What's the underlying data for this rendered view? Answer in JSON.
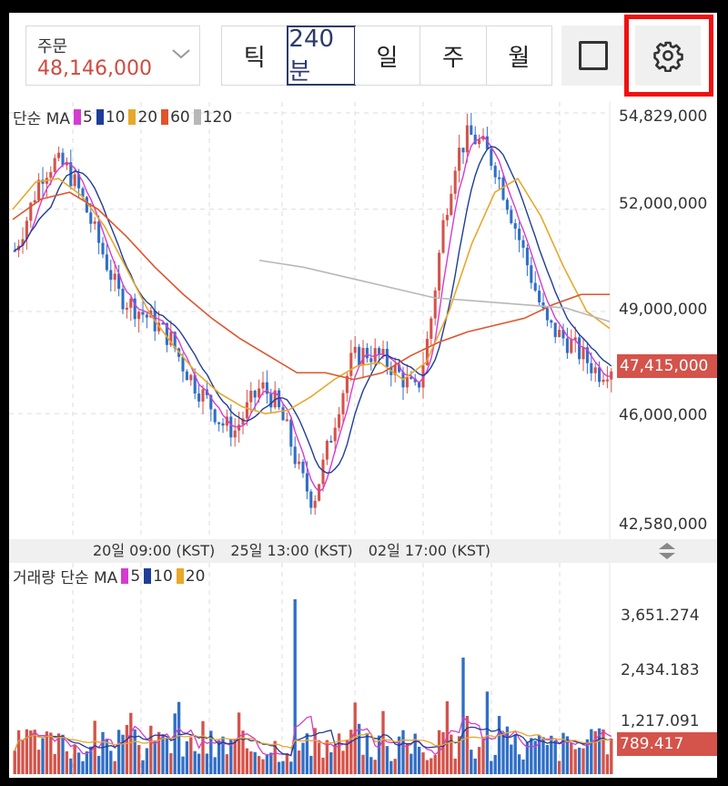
{
  "toolbar": {
    "order_label": "주문",
    "order_value": "48,146,000",
    "tabs": [
      {
        "label": "틱",
        "active": false
      },
      {
        "label": "240분",
        "active": true
      },
      {
        "label": "일",
        "active": false
      },
      {
        "label": "주",
        "active": false
      },
      {
        "label": "월",
        "active": false
      }
    ],
    "square_icon": "square-outline-icon",
    "settings_icon": "gear-icon",
    "highlight_color": "#f01010"
  },
  "price_legend": {
    "title": "단순 MA",
    "items": [
      {
        "label": "5",
        "color": "#d63bd0"
      },
      {
        "label": "10",
        "color": "#1f3d99"
      },
      {
        "label": "20",
        "color": "#e8a82a"
      },
      {
        "label": "60",
        "color": "#e0542c"
      },
      {
        "label": "120",
        "color": "#b8b8b8"
      }
    ]
  },
  "price_axis": {
    "labels": [
      "54,829,000",
      "52,000,000",
      "49,000,000",
      "47,415,000",
      "46,000,000",
      "42,580,000"
    ],
    "current_price": "47,415,000"
  },
  "time_axis": {
    "labels": [
      "20일 09:00 (KST)",
      "25일 13:00 (KST)",
      "02일 17:00 (KST)"
    ]
  },
  "volume_legend": {
    "title": "거래량 단순 MA",
    "items": [
      {
        "label": "5",
        "color": "#d63bd0"
      },
      {
        "label": "10",
        "color": "#1f3d99"
      },
      {
        "label": "20",
        "color": "#e8a82a"
      }
    ]
  },
  "volume_axis": {
    "labels": [
      "3,651.274",
      "2,434.183",
      "1,217.091"
    ],
    "current_volume": "789.417"
  },
  "colors": {
    "up": "#d4534a",
    "down": "#2f6fc6"
  },
  "chart_data": {
    "type": "candlestick",
    "price_range": [
      42580000,
      54829000
    ],
    "volume_range": [
      0,
      4200
    ],
    "price_path": [
      50800000,
      51800000,
      53000000,
      53400000,
      53200000,
      52500000,
      51500000,
      50500000,
      49500000,
      49200000,
      48900000,
      48600000,
      48200000,
      47400000,
      46800000,
      46300000,
      45700000,
      45500000,
      46200000,
      46800000,
      46400000,
      45500000,
      44200000,
      43400000,
      44800000,
      46300000,
      47600000,
      47800000,
      47700000,
      47400000,
      47000000,
      46600000,
      48500000,
      51500000,
      53500000,
      54200000,
      53900000,
      53300000,
      52200000,
      51000000,
      49800000,
      48600000,
      48300000,
      48000000,
      47600000,
      47200000,
      47415000
    ],
    "ma_lines": [
      {
        "name": "20",
        "color": "#e8a82a",
        "points": [
          52000000,
          52800000,
          52900000,
          52400000,
          51500000,
          50200000,
          48900000,
          48000000,
          47200000,
          46600000,
          46200000,
          46000000,
          46100000,
          46500000,
          47000000,
          47400000,
          47500000,
          47000000,
          47500000,
          49000000,
          51000000,
          52500000,
          52900000,
          51800000,
          50300000,
          49000000,
          48500000
        ]
      },
      {
        "name": "60",
        "color": "#e0542c",
        "points": [
          51700000,
          52300000,
          52500000,
          52000000,
          51200000,
          50300000,
          49500000,
          48800000,
          48200000,
          47700000,
          47200000,
          47200000,
          47000000,
          47200000,
          47700000,
          48100000,
          48400000,
          48600000,
          48800000,
          49200000,
          49500000,
          49500000
        ]
      },
      {
        "name": "120",
        "color": "#b8b8b8",
        "points": [
          50500000,
          50300000,
          50000000,
          49700000,
          49400000,
          49300000,
          49200000,
          49100000,
          48700000
        ]
      }
    ]
  }
}
